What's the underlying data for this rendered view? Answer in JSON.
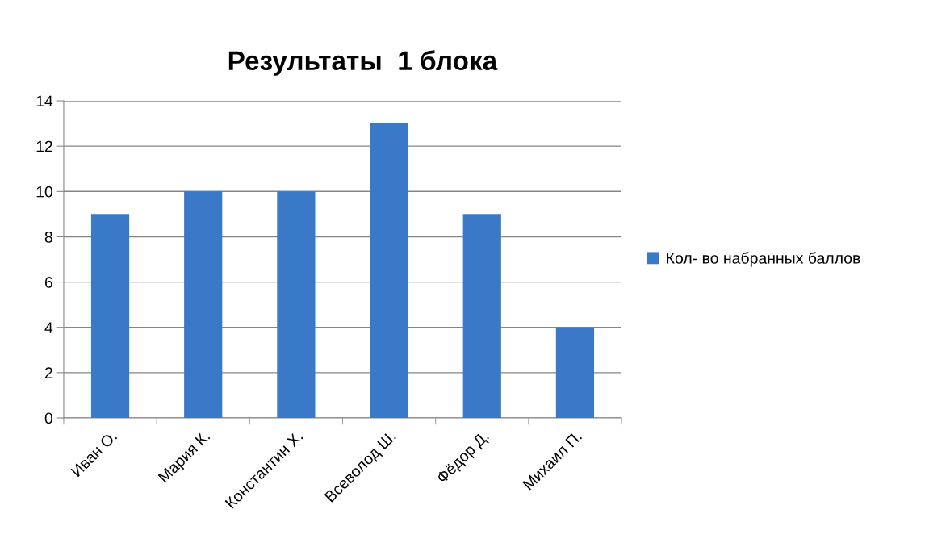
{
  "chart_data": {
    "type": "bar",
    "title": "Результаты  1 блока",
    "categories": [
      "Иван О.",
      "Мария К.",
      "Константин Х.",
      "Всеволод Ш.",
      "Фёдор Д.",
      "Михаил П."
    ],
    "series": [
      {
        "name": "Кол- во набранных баллов",
        "color": "#3a78c8",
        "values": [
          9,
          10,
          10,
          13,
          9,
          4
        ]
      }
    ],
    "ylim": [
      0,
      14
    ],
    "yticks": [
      0,
      2,
      4,
      6,
      8,
      10,
      12,
      14
    ],
    "grid": "y",
    "legend": "right"
  }
}
